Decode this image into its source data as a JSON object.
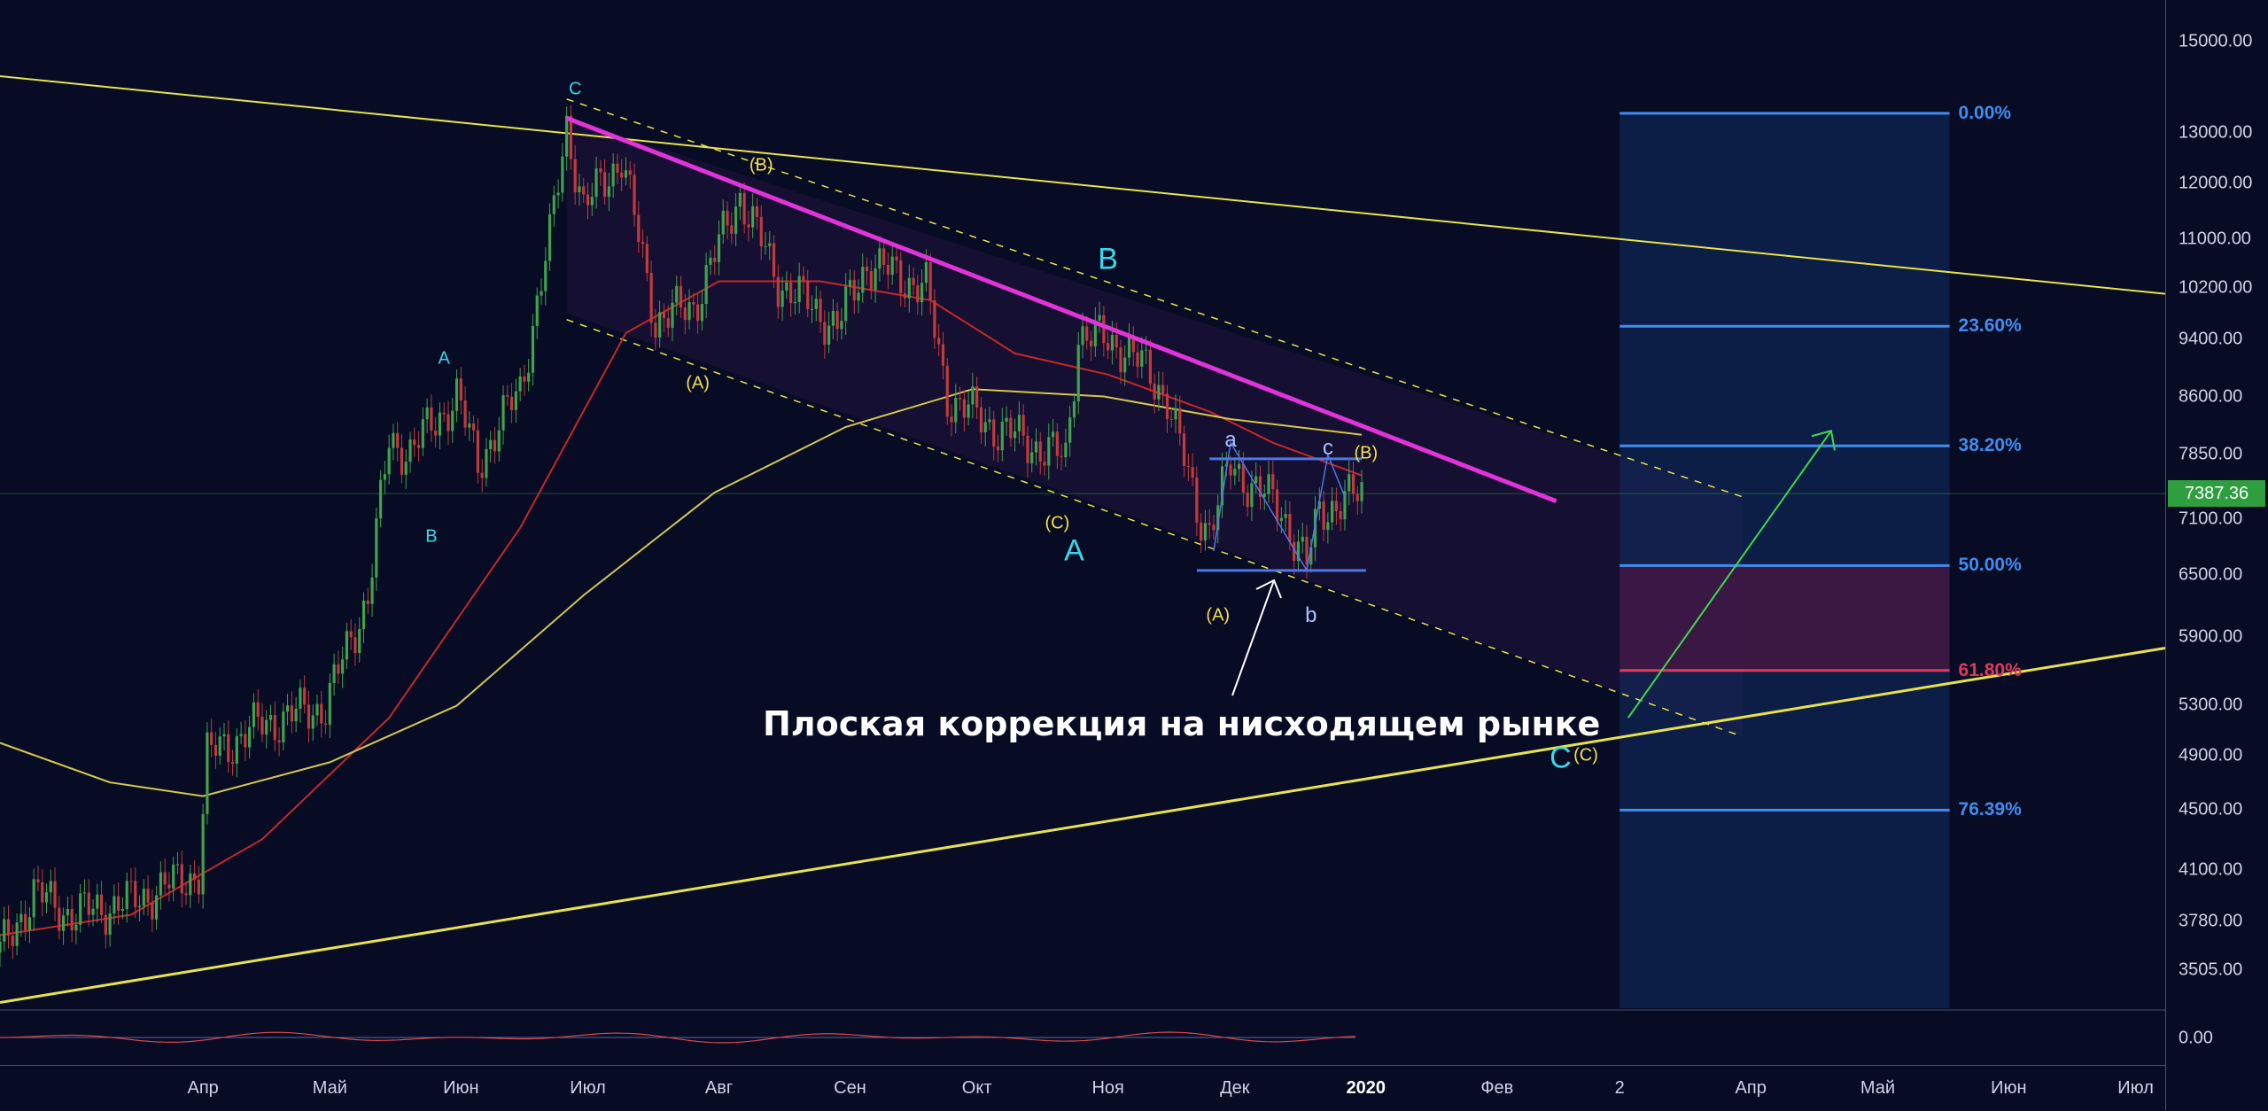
{
  "chart_data": {
    "type": "candlestick",
    "symbol_last_price": "7387.36",
    "y_scale": "log",
    "ylim": [
      3300,
      16000
    ],
    "price_ticks": [
      "15000.00",
      "13000.00",
      "12000.00",
      "11000.00",
      "10200.00",
      "9400.00",
      "8600.00",
      "7850.00",
      "7387.36",
      "7100.00",
      "6500.00",
      "5900.00",
      "5300.00",
      "4900.00",
      "4500.00",
      "4100.00",
      "3780.00",
      "3505.00"
    ],
    "price_tick_values": [
      15000,
      13000,
      12000,
      11000,
      10200,
      9400,
      8600,
      7850,
      7387.36,
      7100,
      6500,
      5900,
      5300,
      4900,
      4500,
      4100,
      3780,
      3505
    ],
    "oscillator_tick": "0.00",
    "time_ticks": [
      "Апр",
      "Май",
      "Июн",
      "Июл",
      "Авг",
      "Сен",
      "Окт",
      "Ноя",
      "Дек",
      "2020",
      "Фев",
      "2",
      "Апр",
      "Май",
      "Июн",
      "Июл"
    ],
    "time_tick_dates": [
      "2019-04-01",
      "2019-05-01",
      "2019-06-01",
      "2019-07-01",
      "2019-08-01",
      "2019-09-01",
      "2019-10-01",
      "2019-11-01",
      "2019-12-01",
      "2020-01-01",
      "2020-02-01",
      "2020-03-01",
      "2020-04-01",
      "2020-05-01",
      "2020-06-01",
      "2020-07-01"
    ],
    "x_range": [
      "2019-02-12",
      "2020-07-08"
    ],
    "price_path": [
      [
        "2019-02-12",
        3600
      ],
      [
        "2019-02-20",
        3950
      ],
      [
        "2019-03-01",
        3820
      ],
      [
        "2019-03-15",
        3900
      ],
      [
        "2019-03-31",
        4080
      ],
      [
        "2019-04-02",
        4900
      ],
      [
        "2019-04-15",
        5150
      ],
      [
        "2019-04-30",
        5300
      ],
      [
        "2019-05-10",
        6300
      ],
      [
        "2019-05-15",
        8000
      ],
      [
        "2019-05-20",
        7900
      ],
      [
        "2019-05-31",
        8600
      ],
      [
        "2019-06-05",
        7750
      ],
      [
        "2019-06-15",
        8700
      ],
      [
        "2019-06-22",
        11000
      ],
      [
        "2019-06-26",
        13200
      ],
      [
        "2019-06-30",
        11500
      ],
      [
        "2019-07-04",
        12000
      ],
      [
        "2019-07-09",
        12500
      ],
      [
        "2019-07-17",
        9700
      ],
      [
        "2019-07-26",
        9900
      ],
      [
        "2019-08-06",
        11800
      ],
      [
        "2019-08-15",
        10300
      ],
      [
        "2019-08-29",
        9600
      ],
      [
        "2019-09-05",
        10600
      ],
      [
        "2019-09-19",
        10200
      ],
      [
        "2019-09-24",
        8600
      ],
      [
        "2019-10-05",
        8200
      ],
      [
        "2019-10-22",
        7800
      ],
      [
        "2019-10-25",
        9500
      ],
      [
        "2019-11-05",
        9300
      ],
      [
        "2019-11-15",
        8600
      ],
      [
        "2019-11-22",
        7200
      ],
      [
        "2019-11-25",
        7000
      ],
      [
        "2019-11-30",
        7700
      ],
      [
        "2019-12-05",
        7500
      ],
      [
        "2019-12-12",
        7200
      ],
      [
        "2019-12-18",
        6600
      ],
      [
        "2019-12-21",
        7200
      ],
      [
        "2019-12-27",
        7300
      ],
      [
        "2019-12-31",
        7387.36
      ]
    ],
    "moving_averages": [
      {
        "color": "#c62828",
        "points": [
          [
            "2019-02-12",
            3700
          ],
          [
            "2019-03-15",
            3820
          ],
          [
            "2019-04-15",
            4300
          ],
          [
            "2019-05-15",
            5200
          ],
          [
            "2019-06-15",
            7000
          ],
          [
            "2019-07-10",
            9500
          ],
          [
            "2019-08-01",
            10300
          ],
          [
            "2019-08-25",
            10300
          ],
          [
            "2019-09-20",
            10000
          ],
          [
            "2019-10-10",
            9200
          ],
          [
            "2019-11-01",
            8900
          ],
          [
            "2019-11-25",
            8400
          ],
          [
            "2019-12-10",
            8000
          ],
          [
            "2019-12-31",
            7600
          ]
        ]
      },
      {
        "color": "#d4c64a",
        "points": [
          [
            "2019-02-12",
            5000
          ],
          [
            "2019-03-10",
            4700
          ],
          [
            "2019-04-01",
            4600
          ],
          [
            "2019-05-01",
            4850
          ],
          [
            "2019-05-31",
            5300
          ],
          [
            "2019-06-30",
            6300
          ],
          [
            "2019-07-31",
            7400
          ],
          [
            "2019-08-31",
            8200
          ],
          [
            "2019-09-30",
            8700
          ],
          [
            "2019-10-31",
            8600
          ],
          [
            "2019-11-30",
            8300
          ],
          [
            "2019-12-31",
            8100
          ]
        ]
      }
    ],
    "fibonacci": {
      "start": "2020-03-01",
      "end": "2020-05-18",
      "levels": [
        {
          "label": "0.00%",
          "price": 13400,
          "color": "#3f8df0"
        },
        {
          "label": "23.60%",
          "price": 9600,
          "color": "#3f8df0"
        },
        {
          "label": "38.20%",
          "price": 7960,
          "color": "#3f8df0"
        },
        {
          "label": "50.00%",
          "price": 6600,
          "color": "#3f8df0"
        },
        {
          "label": "61.80%",
          "price": 5600,
          "color": "#e0395b"
        },
        {
          "label": "76.39%",
          "price": 4500,
          "color": "#3f8df0"
        }
      ]
    },
    "wave_labels": [
      {
        "text": "C",
        "date": "2019-06-28",
        "price": 13900,
        "color": "cyan",
        "size": "s"
      },
      {
        "text": "(B)",
        "date": "2019-08-11",
        "price": 12350,
        "color": "yellow",
        "size": "s"
      },
      {
        "text": "A",
        "date": "2019-05-28",
        "price": 9120,
        "color": "cyan",
        "size": "s"
      },
      {
        "text": "(A)",
        "date": "2019-07-27",
        "price": 8780,
        "color": "yellow",
        "size": "s"
      },
      {
        "text": "B",
        "date": "2019-05-25",
        "price": 6900,
        "color": "cyan",
        "size": "s"
      },
      {
        "text": "B",
        "date": "2019-11-01",
        "price": 10650,
        "color": "cyan",
        "size": "l"
      },
      {
        "text": "A",
        "date": "2019-10-24",
        "price": 6750,
        "color": "cyan",
        "size": "l"
      },
      {
        "text": "(C)",
        "date": "2019-10-20",
        "price": 7050,
        "color": "yellow",
        "size": "s"
      },
      {
        "text": "(A)",
        "date": "2019-11-27",
        "price": 6100,
        "color": "yellow",
        "size": "s"
      },
      {
        "text": "a",
        "date": "2019-11-30",
        "price": 8030,
        "color": "light",
        "size": "m"
      },
      {
        "text": "c",
        "date": "2019-12-23",
        "price": 7930,
        "color": "light",
        "size": "m"
      },
      {
        "text": "b",
        "date": "2019-12-19",
        "price": 6100,
        "color": "light",
        "size": "m"
      },
      {
        "text": "(B)",
        "date": "2020-01-01",
        "price": 7860,
        "color": "yellow",
        "size": "s"
      },
      {
        "text": "C",
        "date": "2020-02-16",
        "price": 4880,
        "color": "cyan",
        "size": "l"
      },
      {
        "text": "(C)",
        "date": "2020-02-22",
        "price": 4900,
        "color": "yellow",
        "size": "s"
      }
    ],
    "caption": "Плоская коррекция на нисходящем рынке"
  },
  "colors": {
    "background": "#070b24",
    "trend_yellow": "#e9e34a",
    "magenta_trend": "#e033d8",
    "fib_blue": "#3f8df0",
    "fib_red": "#e0395b",
    "bull_candle": "#3fa34d",
    "bear_candle": "#c23b3b",
    "flat_box": "#4d78e6",
    "arrow_green": "#3fd84a",
    "arrow_white": "#ffffff",
    "last_price_bg": "#2f9e3e"
  }
}
